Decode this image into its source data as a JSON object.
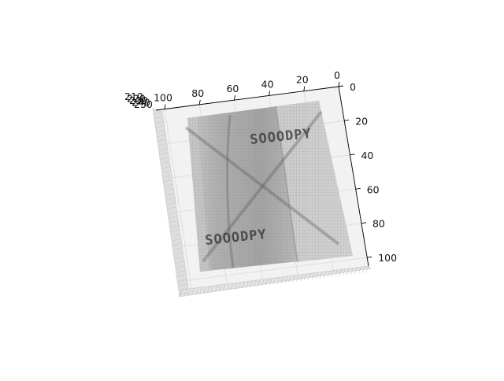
{
  "chart_data": {
    "type": "surface",
    "title": "",
    "xlabel": "",
    "ylabel": "",
    "zlabel": "",
    "x_ticks": [
      "100",
      "80",
      "60",
      "40",
      "20",
      "0"
    ],
    "y_ticks": [
      "0",
      "20",
      "40",
      "60",
      "80",
      "100"
    ],
    "z_ticks": [
      "210",
      "220",
      "230",
      "240",
      "250"
    ],
    "xlim": [
      0,
      105
    ],
    "ylim": [
      0,
      105
    ],
    "colormap": "gray",
    "grid": true,
    "surface_texts": [
      "SOOODPY",
      "SOOODPY"
    ]
  },
  "colors": {
    "background": "#ffffff",
    "pane": "#f2f2f2",
    "pane_side": "#dcdcdc",
    "surface_dark": "#8a8a8a",
    "surface_light": "#c9c9c9",
    "axis": "#000000"
  }
}
